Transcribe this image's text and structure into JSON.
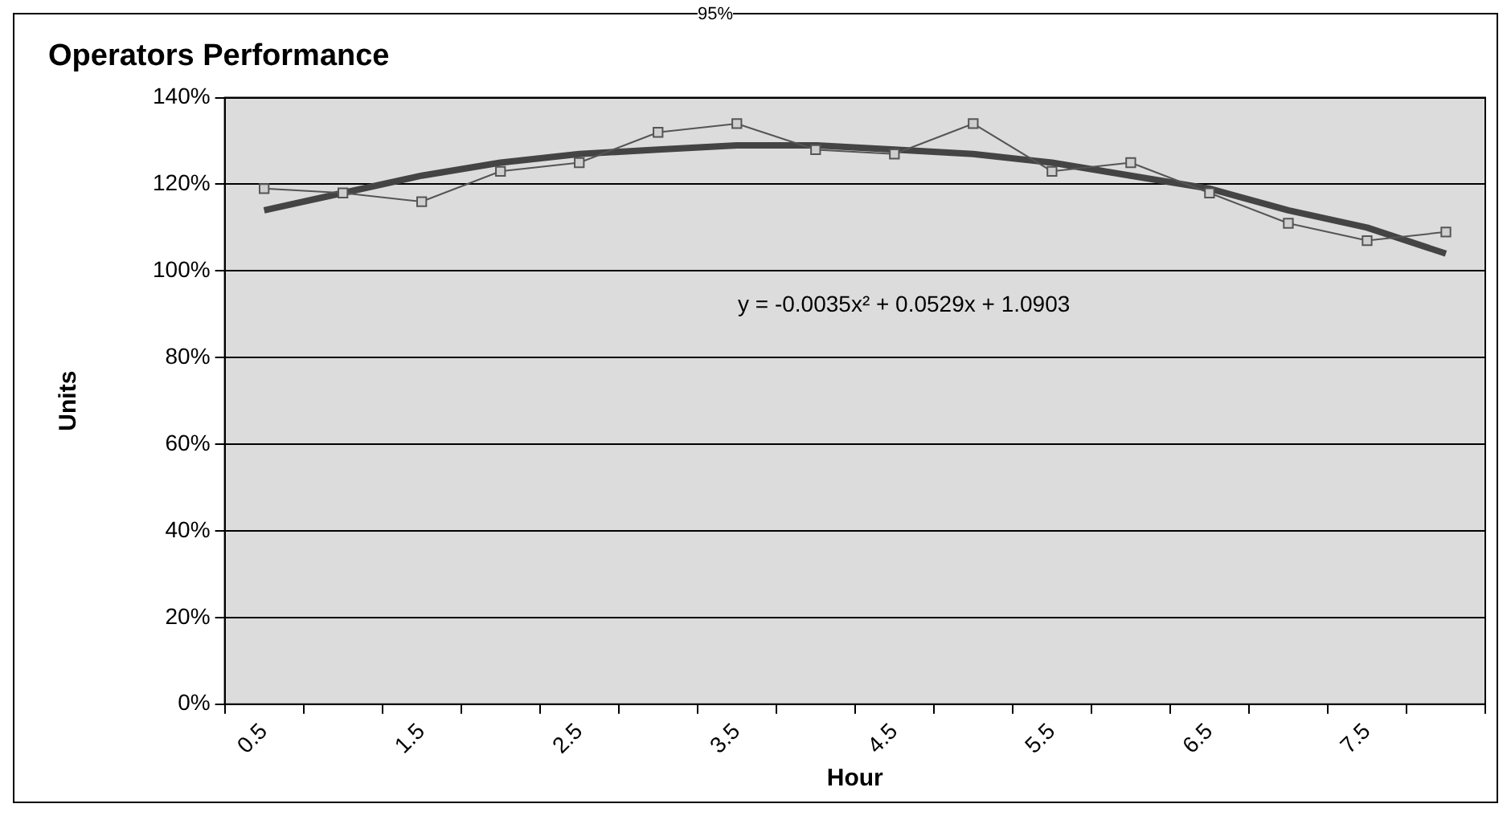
{
  "chart_data": {
    "type": "line",
    "title": "Operators Performance",
    "xlabel": "Hour",
    "ylabel": "Units",
    "categories": [
      "0.5",
      null,
      "1.5",
      null,
      "2.5",
      null,
      "3.5",
      null,
      "4.5",
      null,
      "5.5",
      null,
      "6.5",
      null,
      "7.5",
      null
    ],
    "series": [
      {
        "color": "#555555",
        "marker": "square",
        "line_style": "solid",
        "values": [
          119,
          118,
          116,
          123,
          125,
          132,
          134,
          128,
          127,
          134,
          123,
          125,
          118,
          111,
          107,
          109
        ]
      },
      {
        "color": "#444444",
        "marker": "none",
        "line_style": "solid",
        "values": [
          114,
          118,
          122,
          125,
          127,
          128,
          129,
          129,
          128,
          127,
          125,
          122,
          119,
          114,
          110,
          104
        ]
      }
    ],
    "ylim": [
      0,
      140
    ],
    "yticks": [
      {
        "value": 0,
        "label": "0%"
      },
      {
        "value": 20,
        "label": "20%"
      },
      {
        "value": 40,
        "label": "40%"
      },
      {
        "value": 60,
        "label": "60%"
      },
      {
        "value": 80,
        "label": "80%"
      },
      {
        "value": 100,
        "label": "100%"
      },
      {
        "value": 120,
        "label": "120%"
      },
      {
        "value": 140,
        "label": "140%"
      }
    ],
    "grid": "y",
    "legend": false,
    "annotations": [
      "y = -0.0035x² + 0.0529x + 1.0903",
      "95%"
    ]
  }
}
